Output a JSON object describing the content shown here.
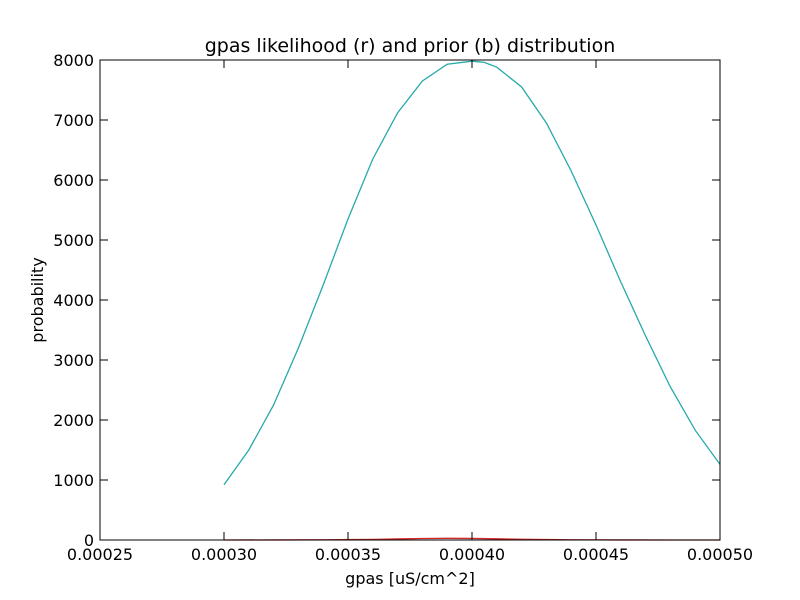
{
  "chart_data": {
    "type": "line",
    "title": "gpas likelihood (r) and prior (b) distribution",
    "xlabel": "gpas [uS/cm^2]",
    "ylabel": "probability",
    "xlim": [
      0.00025,
      0.0005
    ],
    "ylim": [
      0,
      8000
    ],
    "x_ticks": [
      0.00025,
      0.0003,
      0.00035,
      0.0004,
      0.00045,
      0.0005
    ],
    "x_tick_labels": [
      "0.00025",
      "0.00030",
      "0.00035",
      "0.00040",
      "0.00045",
      "0.00050"
    ],
    "y_ticks": [
      0,
      1000,
      2000,
      3000,
      4000,
      5000,
      6000,
      7000,
      8000
    ],
    "y_tick_labels": [
      "0",
      "1000",
      "2000",
      "3000",
      "4000",
      "5000",
      "6000",
      "7000",
      "8000"
    ],
    "grid": false,
    "series": [
      {
        "color": "#26a9a9",
        "x": [
          0.0003,
          0.00031,
          0.00032,
          0.00033,
          0.00034,
          0.00035,
          0.00036,
          0.00037,
          0.00038,
          0.00039,
          0.0004,
          0.000405,
          0.00041,
          0.00042,
          0.00043,
          0.00044,
          0.00045,
          0.00046,
          0.00047,
          0.00048,
          0.00049,
          0.0005
        ],
        "y": [
          920,
          1500,
          2250,
          3200,
          4250,
          5350,
          6350,
          7120,
          7650,
          7930,
          7980,
          7960,
          7880,
          7550,
          6950,
          6150,
          5250,
          4300,
          3400,
          2550,
          1830,
          1260
        ]
      },
      {
        "color": "#d62728",
        "x": [
          0.0003,
          0.00032,
          0.00034,
          0.00036,
          0.00037,
          0.00038,
          0.00039,
          0.0004,
          0.00041,
          0.00042,
          0.00044,
          0.00046,
          0.00048,
          0.0005
        ],
        "y": [
          0,
          1,
          3,
          10,
          18,
          25,
          28,
          26,
          20,
          12,
          4,
          1,
          0,
          0
        ]
      }
    ]
  }
}
